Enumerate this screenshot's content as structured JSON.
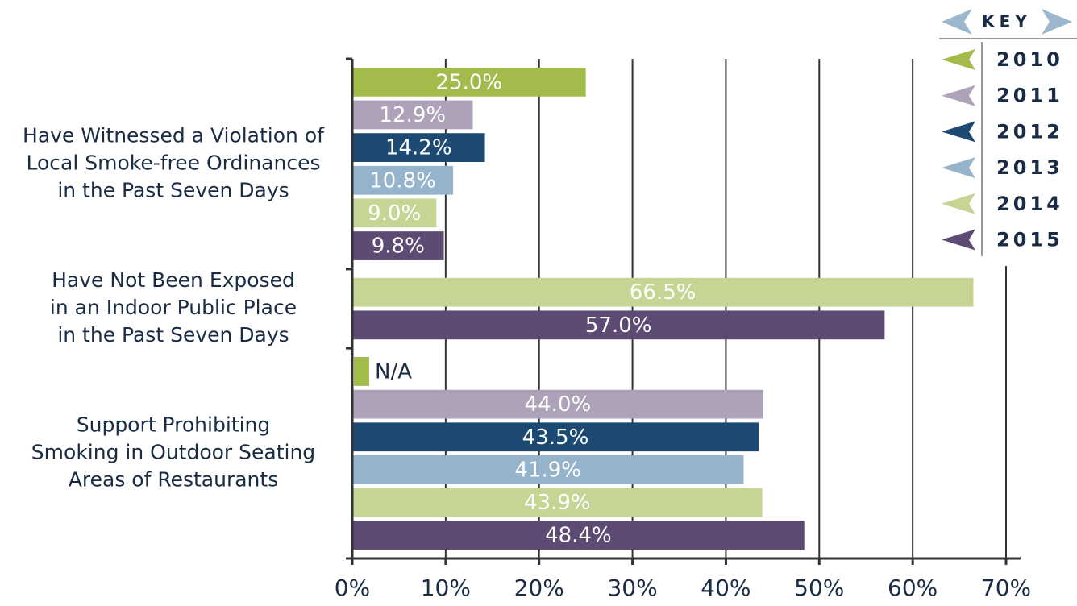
{
  "chart_data": {
    "type": "bar",
    "orientation": "horizontal",
    "categories": [
      [
        "Have Witnessed a Violation of",
        "Local Smoke-free Ordinances",
        "in the Past Seven Days"
      ],
      [
        "Have Not Been Exposed",
        "in an Indoor Public Place",
        "in the Past Seven Days"
      ],
      [
        "Support Prohibiting",
        "Smoking in Outdoor Seating",
        "Areas of Restaurants"
      ]
    ],
    "series": [
      {
        "name": "2010",
        "color": "#a3bb4a",
        "values": [
          25.0,
          null,
          null
        ],
        "value_labels": [
          "25.0%",
          null,
          "N/A"
        ]
      },
      {
        "name": "2011",
        "color": "#aea2b9",
        "values": [
          12.9,
          null,
          44.0
        ],
        "value_labels": [
          "12.9%",
          null,
          "44.0%"
        ]
      },
      {
        "name": "2012",
        "color": "#1d4a73",
        "values": [
          14.2,
          null,
          43.5
        ],
        "value_labels": [
          "14.2%",
          null,
          "43.5%"
        ]
      },
      {
        "name": "2013",
        "color": "#95b4cb",
        "values": [
          10.8,
          null,
          41.9
        ],
        "value_labels": [
          "10.8%",
          null,
          "41.9%"
        ]
      },
      {
        "name": "2014",
        "color": "#c6d494",
        "values": [
          9.0,
          66.5,
          43.9
        ],
        "value_labels": [
          "9.0%",
          "66.5%",
          "43.9%"
        ]
      },
      {
        "name": "2015",
        "color": "#5d4b73",
        "values": [
          9.8,
          57.0,
          48.4
        ],
        "value_labels": [
          "9.8%",
          "57.0%",
          "48.4%"
        ]
      }
    ],
    "xlim": [
      0,
      70
    ],
    "xticks": [
      {
        "value": 0,
        "label": "0%"
      },
      {
        "value": 10,
        "label": "10%"
      },
      {
        "value": 20,
        "label": "20%"
      },
      {
        "value": 30,
        "label": "30%"
      },
      {
        "value": 40,
        "label": "40%"
      },
      {
        "value": 50,
        "label": "50%"
      },
      {
        "value": 60,
        "label": "60%"
      },
      {
        "value": 70,
        "label": "70%"
      }
    ],
    "grid": true,
    "legend_title": "KEY",
    "legend_position": "top-right"
  }
}
